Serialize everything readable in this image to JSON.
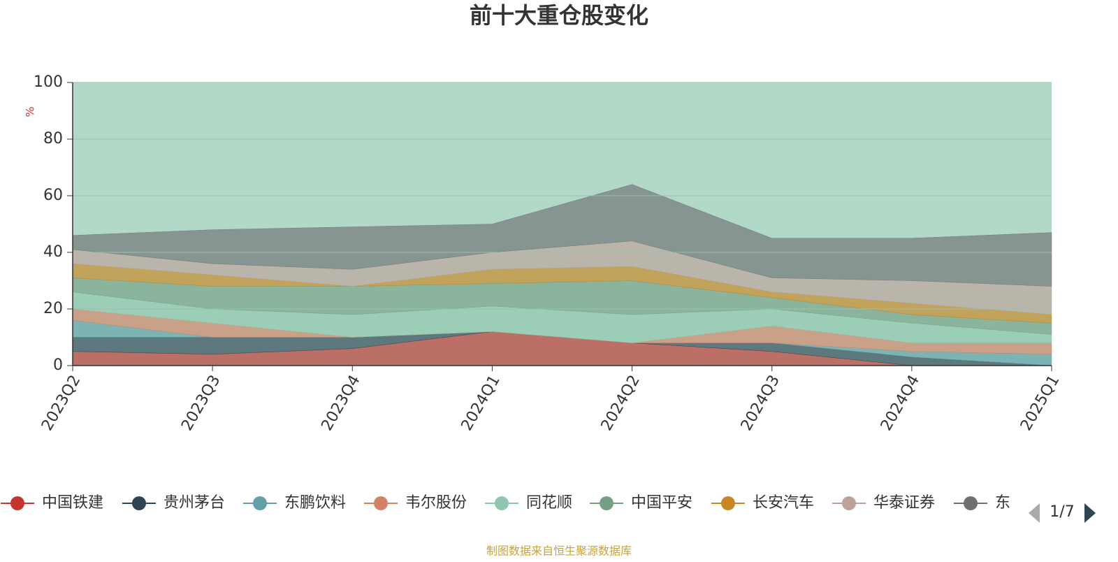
{
  "chart_data": {
    "type": "stacked-area",
    "title": "前十大重仓股变化",
    "y_label": "%",
    "categories": [
      "2023Q2",
      "2023Q3",
      "2023Q4",
      "2024Q1",
      "2024Q2",
      "2024Q3",
      "2024Q4",
      "2025Q1"
    ],
    "ylim": [
      0,
      100
    ],
    "yticks": [
      0,
      20,
      40,
      60,
      80,
      100
    ],
    "grid": true,
    "series": [
      {
        "name": "中国铁建",
        "color": "#c23531",
        "values": [
          5,
          4,
          6,
          12,
          8,
          5,
          0,
          0
        ]
      },
      {
        "name": "贵州茅台",
        "color": "#2f4554",
        "values": [
          5,
          6,
          4,
          0,
          0,
          3,
          3,
          0
        ]
      },
      {
        "name": "东鹏饮料",
        "color": "#61a0a8",
        "values": [
          6,
          0,
          0,
          0,
          0,
          0,
          2,
          4
        ]
      },
      {
        "name": "韦尔股份",
        "color": "#d48265",
        "values": [
          4,
          5,
          0,
          0,
          0,
          6,
          3,
          4
        ]
      },
      {
        "name": "同花顺",
        "color": "#91c7ae",
        "values": [
          6,
          5,
          8,
          9,
          10,
          6,
          7,
          3
        ]
      },
      {
        "name": "中国平安",
        "color": "#749f83",
        "values": [
          5,
          8,
          10,
          8,
          12,
          4,
          3,
          4
        ]
      },
      {
        "name": "长安汽车",
        "color": "#ca8622",
        "values": [
          5,
          4,
          0,
          5,
          5,
          2,
          4,
          3
        ]
      },
      {
        "name": "华泰证券",
        "color": "#bda29a",
        "values": [
          5,
          4,
          6,
          6,
          9,
          5,
          8,
          10
        ]
      },
      {
        "name": "东",
        "color": "#6e7074",
        "values": [
          5,
          12,
          15,
          10,
          20,
          14,
          15,
          19
        ]
      }
    ],
    "legend_page": "1/7",
    "source": "制图数据来自恒生聚源数据库"
  }
}
